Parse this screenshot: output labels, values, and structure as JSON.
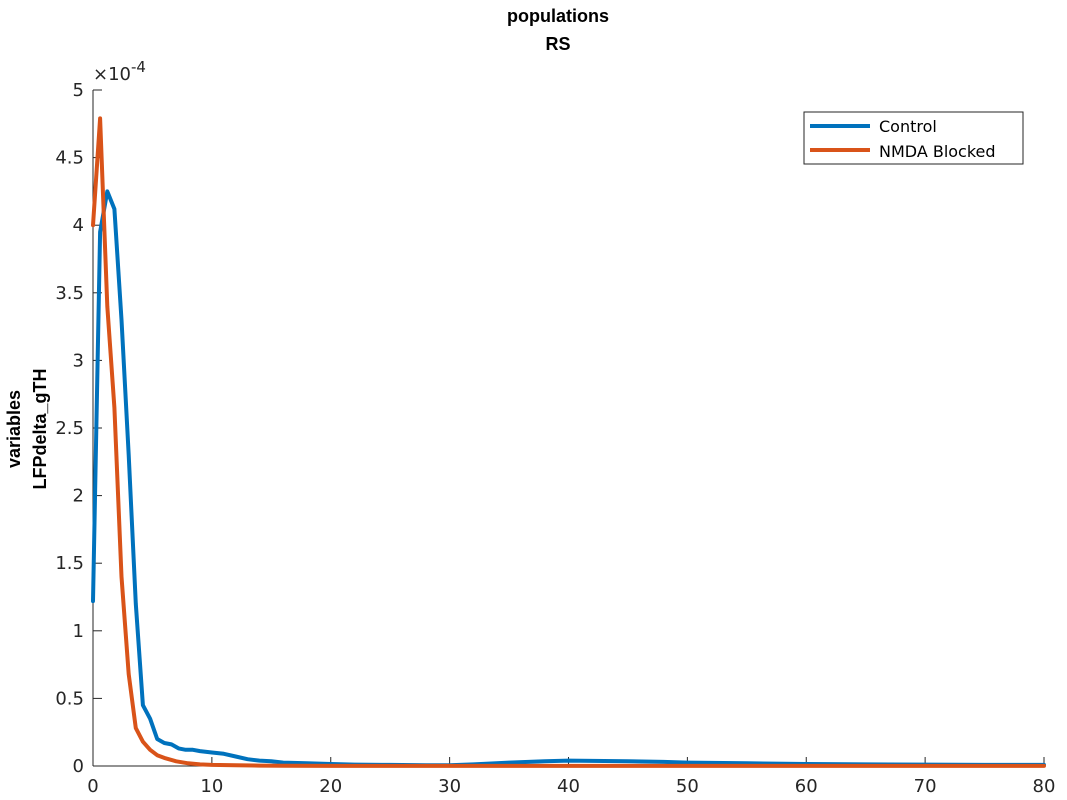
{
  "chart_data": {
    "type": "line",
    "title": [
      "populations",
      "RS"
    ],
    "ylabel": [
      "variables",
      "LFPdelta_gTH"
    ],
    "xlabel": "",
    "xlim": [
      0,
      80
    ],
    "ylim": [
      0,
      5
    ],
    "y_exponent_label": "×10",
    "y_exponent_power": "-4",
    "xticks": [
      "0",
      "10",
      "20",
      "30",
      "40",
      "50",
      "60",
      "70",
      "80"
    ],
    "yticks": [
      "0",
      "0.5",
      "1",
      "1.5",
      "2",
      "2.5",
      "3",
      "3.5",
      "4",
      "4.5",
      "5"
    ],
    "legend_position": "top-right",
    "series": [
      {
        "name": "Control",
        "color": "#0072BD",
        "x": [
          0,
          0.6,
          1.2,
          1.8,
          2.4,
          3.0,
          3.6,
          4.2,
          4.8,
          5.4,
          6.0,
          6.6,
          7.2,
          7.8,
          8.4,
          9.0,
          10,
          11,
          12,
          13,
          14,
          15,
          16,
          18,
          20,
          22,
          25,
          28,
          30,
          32,
          35,
          38,
          40,
          42,
          45,
          48,
          50,
          55,
          60,
          65,
          70,
          75,
          80
        ],
        "values": [
          1.22,
          3.95,
          4.25,
          4.12,
          3.3,
          2.3,
          1.2,
          0.45,
          0.35,
          0.2,
          0.17,
          0.16,
          0.13,
          0.12,
          0.12,
          0.11,
          0.1,
          0.09,
          0.07,
          0.05,
          0.04,
          0.035,
          0.025,
          0.02,
          0.015,
          0.01,
          0.008,
          0.005,
          0.006,
          0.012,
          0.025,
          0.035,
          0.04,
          0.038,
          0.035,
          0.03,
          0.025,
          0.02,
          0.015,
          0.012,
          0.01,
          0.008,
          0.008
        ]
      },
      {
        "name": "NMDA Blocked",
        "color": "#D95319",
        "x": [
          0,
          0.6,
          1.2,
          1.8,
          2.4,
          3.0,
          3.6,
          4.2,
          4.8,
          5.4,
          6.0,
          7.0,
          8.0,
          9.0,
          10,
          12,
          14,
          16,
          20,
          30,
          40,
          50,
          60,
          70,
          80
        ],
        "values": [
          4.0,
          4.79,
          3.4,
          2.65,
          1.4,
          0.68,
          0.28,
          0.18,
          0.12,
          0.08,
          0.06,
          0.035,
          0.02,
          0.012,
          0.008,
          0.005,
          0.003,
          0.002,
          0.001,
          0.001,
          0.001,
          0.001,
          0.001,
          0.001,
          0.001
        ]
      }
    ]
  }
}
